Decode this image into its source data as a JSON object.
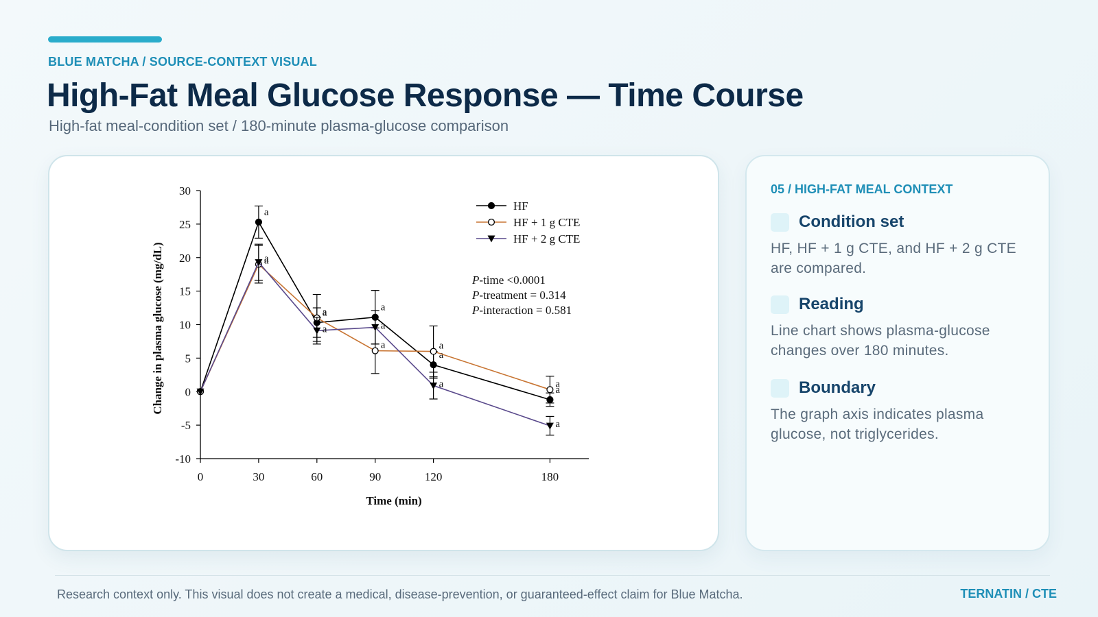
{
  "header": {
    "kicker": "BLUE MATCHA / SOURCE-CONTEXT VISUAL",
    "title": "High-Fat Meal Glucose Response — Time Course",
    "subtitle": "High-fat meal-condition set / 180-minute plasma-glucose comparison"
  },
  "chart_data": {
    "type": "line",
    "title": "",
    "xlabel": "Time (min)",
    "ylabel": "Change in plasma glucose (mg/dL)",
    "x": [
      0,
      30,
      60,
      90,
      120,
      180
    ],
    "x_ticks": [
      "0",
      "30",
      "60",
      "90",
      "120",
      "180"
    ],
    "y_ticks": [
      "30",
      "25",
      "20",
      "15",
      "10",
      "5",
      "0",
      "-5",
      "-10"
    ],
    "xlim": [
      0,
      200
    ],
    "ylim": [
      -10,
      30
    ],
    "grid": false,
    "legend_position": "top-right",
    "series": [
      {
        "name": "HF",
        "color": "#000000",
        "marker": "filled-circle",
        "values": [
          0,
          25.3,
          10.3,
          11.1,
          4.0,
          -1.2
        ],
        "errors": [
          0,
          2.4,
          2.2,
          4.0,
          2.0,
          1.0
        ],
        "labels": [
          "",
          "a",
          "a",
          "a",
          "a",
          "a"
        ]
      },
      {
        "name": "HF + 1 g CTE",
        "color": "#c87533",
        "marker": "open-circle",
        "values": [
          0,
          19.0,
          11.0,
          6.1,
          6.0,
          0.3
        ],
        "errors": [
          0,
          2.8,
          3.5,
          3.4,
          3.8,
          2.0
        ],
        "labels": [
          "",
          "a",
          "a",
          "a",
          "a",
          "a"
        ]
      },
      {
        "name": "HF + 2 g CTE",
        "color": "#5a4a8c",
        "marker": "filled-triangle-down",
        "values": [
          0,
          19.3,
          9.1,
          9.6,
          0.9,
          -5.1
        ],
        "errors": [
          0,
          2.7,
          2.0,
          2.5,
          2.0,
          1.4
        ],
        "labels": [
          "",
          "a",
          "a",
          "a",
          "a",
          "a"
        ]
      }
    ],
    "annotations": [
      "P-time <0.0001",
      "P-treatment = 0.314",
      "P-interaction = 0.581"
    ]
  },
  "side": {
    "kicker": "05 / HIGH-FAT MEAL CONTEXT",
    "items": [
      {
        "title": "Condition set",
        "body": "HF, HF + 1 g CTE, and HF + 2 g CTE are compared."
      },
      {
        "title": "Reading",
        "body": "Line chart shows plasma-glucose changes over 180 minutes."
      },
      {
        "title": "Boundary",
        "body": "The graph axis indicates plasma glucose, not triglycerides."
      }
    ]
  },
  "footer": {
    "note": "Research context only. This visual does not create a medical, disease-prevention, or guaranteed-effect claim for Blue Matcha.",
    "tag": "TERNATIN / CTE"
  }
}
